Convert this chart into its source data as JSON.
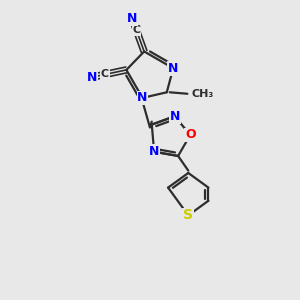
{
  "bg_color": "#e8e8e8",
  "bond_color": "#2d2d2d",
  "N_color": "#0000ff",
  "O_color": "#ff0000",
  "S_color": "#cccc00",
  "line_width": 1.6,
  "xlim": [
    0,
    10
  ],
  "ylim": [
    0,
    10
  ]
}
